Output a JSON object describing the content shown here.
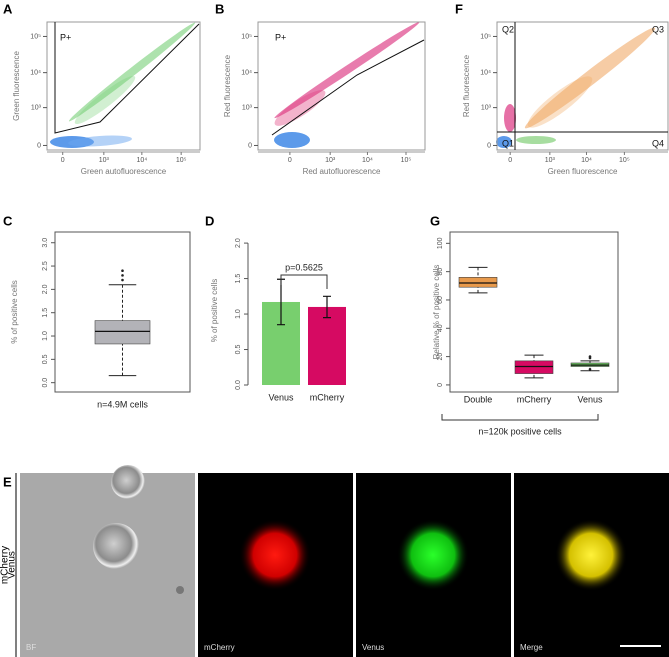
{
  "chart_data": [
    {
      "type": "flow",
      "panel_label": "A",
      "x_label": "Green autofluorescence",
      "y_label": "Green fluorescence",
      "gate_label": "P+",
      "scale": "biexponential",
      "xlim": [
        -60,
        300000
      ],
      "ylim": [
        -25,
        250000
      ],
      "xticks": [
        0,
        {
          "value": 1000,
          "label": "10³"
        },
        {
          "value": 10000,
          "label": "10⁴"
        },
        {
          "value": 100000,
          "label": "10⁵"
        }
      ],
      "yticks": [
        0,
        {
          "value": 1000,
          "label": "10³"
        },
        {
          "value": 10000,
          "label": "10⁴"
        },
        {
          "value": 100000,
          "label": "10⁵"
        }
      ]
    },
    {
      "type": "flow",
      "panel_label": "B",
      "x_label": "Red autofluorescence",
      "y_label": "Red fluorescence",
      "gate_label": "P+",
      "scale": "biexponential",
      "xlim": [
        -85,
        310000
      ],
      "ylim": [
        -25,
        250000
      ],
      "xticks": [
        0,
        {
          "value": 1000,
          "label": "10³"
        },
        {
          "value": 10000,
          "label": "10⁴"
        },
        {
          "value": 100000,
          "label": "10⁵"
        }
      ],
      "yticks": [
        0,
        {
          "value": 1000,
          "label": "10³"
        },
        {
          "value": 10000,
          "label": "10⁴"
        },
        {
          "value": 100000,
          "label": "10⁵"
        }
      ]
    },
    {
      "type": "flow",
      "panel_label": "F",
      "x_label": "Green fluorescence",
      "y_label": "Red fluorescence",
      "quadrant_labels": [
        "Q1",
        "Q2",
        "Q3",
        "Q4"
      ],
      "scale": "biexponential",
      "xlim": [
        -55,
        1400000
      ],
      "ylim": [
        -25,
        250000
      ],
      "xticks": [
        0,
        {
          "value": 1000,
          "label": "10³"
        },
        {
          "value": 10000,
          "label": "10⁴"
        },
        {
          "value": 100000,
          "label": "10⁵"
        }
      ],
      "yticks": [
        0,
        {
          "value": 1000,
          "label": "10³"
        },
        {
          "value": 10000,
          "label": "10⁴"
        },
        {
          "value": 100000,
          "label": "10⁵"
        }
      ]
    },
    {
      "type": "box",
      "panel_label": "C",
      "y_label": "% of positive cells",
      "x_label": "n=4.9M cells",
      "ylim": [
        -0.2,
        3.23
      ],
      "yticks": [
        {
          "value": 0,
          "label": "0.0"
        },
        {
          "value": 0.5,
          "label": "0.5"
        },
        {
          "value": 1,
          "label": "1.0"
        },
        {
          "value": 1.5,
          "label": "1.5"
        },
        {
          "value": 2,
          "label": "2.0"
        },
        {
          "value": 2.5,
          "label": "2.5"
        },
        {
          "value": 3,
          "label": "3.0"
        }
      ],
      "boxes": [
        {
          "whisker_low": 0.15,
          "q1": 0.83,
          "median": 1.1,
          "q3": 1.33,
          "whisker_high": 2.1,
          "outliers": [
            2.2,
            2.3,
            2.4
          ],
          "color": "#b3b3b8"
        }
      ]
    },
    {
      "type": "bar",
      "panel_label": "D",
      "y_label": "% of positive cells",
      "annotation": "p=0.5625",
      "categories": [
        "Venus",
        "mCherry"
      ],
      "values": [
        1.17,
        1.1
      ],
      "errors": [
        0.32,
        0.15
      ],
      "colors": [
        "#78cf6e",
        "#d60a62"
      ],
      "ylim": [
        0,
        2.1
      ],
      "yticks": [
        {
          "value": 0,
          "label": "0.0"
        },
        {
          "value": 0.5,
          "label": "0.5"
        },
        {
          "value": 1,
          "label": "1.0"
        },
        {
          "value": 1.5,
          "label": "1.5"
        },
        {
          "value": 2,
          "label": "2.0"
        }
      ]
    },
    {
      "type": "box",
      "panel_label": "G",
      "y_label": "Relative % of positive cells",
      "x_label": "n=120k positive cells",
      "categories": [
        "Double",
        "mCherry",
        "Venus"
      ],
      "ylim": [
        -5,
        108
      ],
      "yticks": [
        0,
        20,
        40,
        60,
        80,
        100
      ],
      "boxes": [
        {
          "whisker_low": 65,
          "q1": 69,
          "median": 72,
          "q3": 76,
          "whisker_high": 83,
          "outliers": [],
          "color": "#e89a4c"
        },
        {
          "whisker_low": 5,
          "q1": 8,
          "median": 13,
          "q3": 17,
          "whisker_high": 21,
          "outliers": [],
          "color": "#d60a62"
        },
        {
          "whisker_low": 10,
          "q1": 13,
          "median": 14,
          "q3": 15.5,
          "whisker_high": 17,
          "outliers": [
            11,
            19,
            20
          ],
          "color": "#6cc760"
        }
      ]
    }
  ],
  "panel_e": {
    "label": "E",
    "side_label": [
      "mCherry",
      "Venus"
    ],
    "images": [
      {
        "label": "BF"
      },
      {
        "label": "mCherry"
      },
      {
        "label": "Venus"
      },
      {
        "label": "Merge"
      }
    ]
  }
}
